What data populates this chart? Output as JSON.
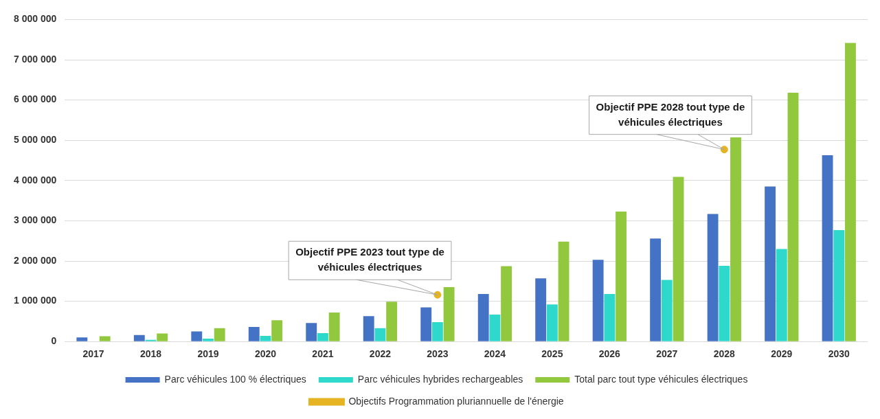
{
  "chart_data": {
    "type": "bar",
    "categories": [
      "2017",
      "2018",
      "2019",
      "2020",
      "2021",
      "2022",
      "2023",
      "2024",
      "2025",
      "2026",
      "2027",
      "2028",
      "2029",
      "2030"
    ],
    "series": [
      {
        "name": "Parc véhicules 100 % électriques",
        "color": "#4472c4",
        "values": [
          100000,
          160000,
          250000,
          360000,
          460000,
          630000,
          850000,
          1180000,
          1570000,
          2030000,
          2560000,
          3170000,
          3850000,
          4630000
        ]
      },
      {
        "name": "Parc véhicules hybrides rechargeables",
        "color": "#2ed9cc",
        "values": [
          0,
          40000,
          70000,
          140000,
          210000,
          330000,
          480000,
          670000,
          920000,
          1180000,
          1530000,
          1880000,
          2300000,
          2770000
        ]
      },
      {
        "name": "Total parc tout type véhicules électriques",
        "color": "#92c83e",
        "values": [
          130000,
          200000,
          330000,
          530000,
          720000,
          990000,
          1350000,
          1870000,
          2480000,
          3230000,
          4090000,
          5070000,
          6180000,
          7420000
        ]
      },
      {
        "name": "Objectifs Programmation pluriannuelle de l'énergie",
        "type": "scatter",
        "color": "#e6b422",
        "marker": "circle",
        "values": [
          null,
          null,
          null,
          null,
          null,
          null,
          1160000,
          null,
          null,
          null,
          null,
          4770000,
          null,
          null
        ]
      }
    ],
    "ylim": [
      0,
      8000000
    ],
    "yticks": [
      {
        "value": 0,
        "label": "0"
      },
      {
        "value": 1000000,
        "label": "1 000 000"
      },
      {
        "value": 2000000,
        "label": "2 000 000"
      },
      {
        "value": 3000000,
        "label": "3 000 000"
      },
      {
        "value": 4000000,
        "label": "4 000 000"
      },
      {
        "value": 5000000,
        "label": "5 000 000"
      },
      {
        "value": 6000000,
        "label": "6 000 000"
      },
      {
        "value": 7000000,
        "label": "7 000 000"
      },
      {
        "value": 8000000,
        "label": "8 000 000"
      }
    ],
    "grid": "y",
    "legend": "bottom",
    "annotations": [
      {
        "text": "Objectif PPE 2023 tout type de véhicules électriques",
        "x": "2023",
        "y": 1160000
      },
      {
        "text": "Objectif PPE 2028 tout type de véhicules électriques",
        "x": "2028",
        "y": 4770000
      }
    ]
  }
}
